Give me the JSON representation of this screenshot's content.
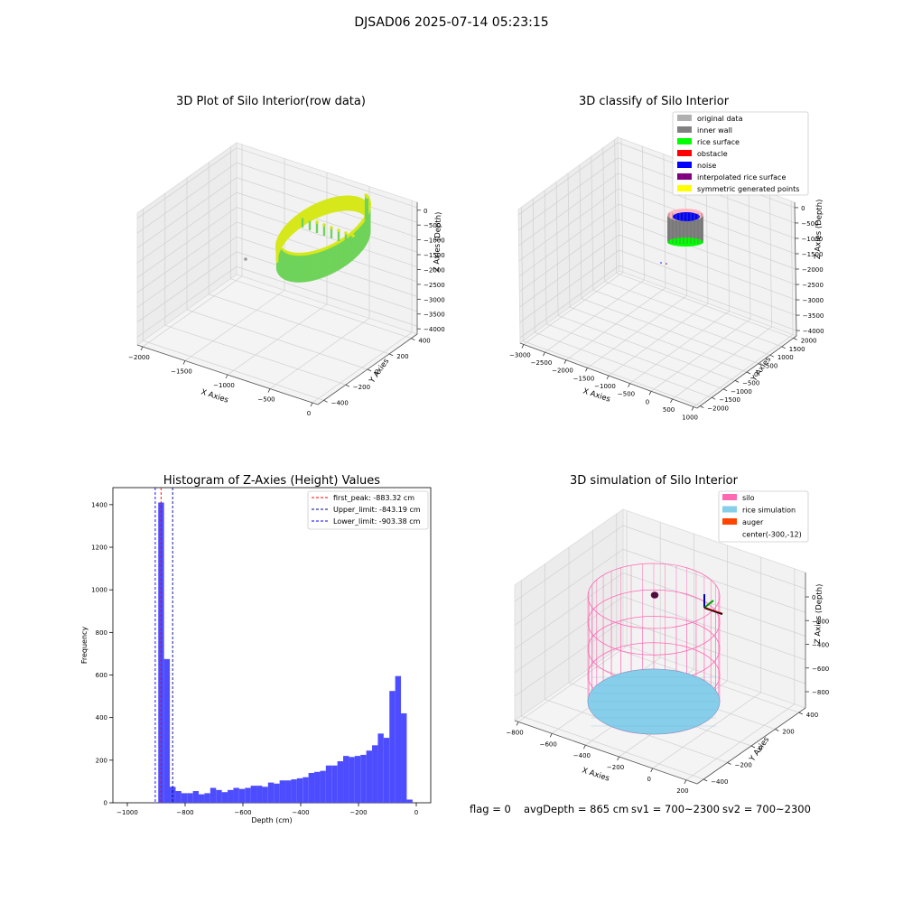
{
  "figure": {
    "suptitle": "DJSAD06 2025-07-14 05:23:15",
    "status": {
      "flag": "flag = 0",
      "avg_depth": "avgDepth = 865 cm",
      "sv1": "sv1 = 700~2300",
      "sv2": "sv2 = 700~2300"
    }
  },
  "chart_data": [
    {
      "type": "scatter",
      "projection": "3d",
      "title": "3D Plot of Silo Interior(row data)",
      "xlabel": "X Axies",
      "ylabel": "Y Axies",
      "zlabel": "Z Axies (Depth)",
      "x_ticks": [
        "−2000",
        "−1500",
        "−1000",
        "−500",
        "0"
      ],
      "y_ticks": [
        "−400",
        "−200",
        "0",
        "200",
        "400"
      ],
      "z_ticks": [
        "0",
        "−500",
        "−1000",
        "−1500",
        "−2000",
        "−2500",
        "−3000",
        "−3500",
        "−4000"
      ],
      "colormap": [
        "#6fd35a",
        "#d6e81a"
      ],
      "description_points": "ring of wall points from z≈-800 to z≈-2700 colored green to yellow"
    },
    {
      "type": "scatter",
      "projection": "3d",
      "title": "3D classify of Silo Interior",
      "xlabel": "X Axies",
      "ylabel": "Y Axies",
      "zlabel": "Z Axies (Depth)",
      "x_ticks": [
        "−3000",
        "−2500",
        "−2000",
        "−1500",
        "−1000",
        "−500",
        "0",
        "500",
        "1000"
      ],
      "y_ticks": [
        "−2000",
        "−1500",
        "−1000",
        "−500",
        "0",
        "500",
        "1000",
        "1500",
        "2000"
      ],
      "z_ticks": [
        "0",
        "−500",
        "−1000",
        "−1500",
        "−2000",
        "−2500",
        "−3000",
        "−3500",
        "−4000"
      ],
      "legend": [
        {
          "name": "original data",
          "color": "#b0b0b0"
        },
        {
          "name": "inner wall",
          "color": "#808080"
        },
        {
          "name": "rice surface",
          "color": "#00ff00"
        },
        {
          "name": "obstacle",
          "color": "#ff0000"
        },
        {
          "name": "noise",
          "color": "#0000ff"
        },
        {
          "name": "interpolated rice surface",
          "color": "#800080"
        },
        {
          "name": "symmetric generated points",
          "color": "#ffff00"
        }
      ],
      "legend_position": "top-right"
    },
    {
      "type": "bar",
      "title": "Histogram of Z-Axies (Height) Values",
      "xlabel": "Depth (cm)",
      "ylabel": "Frequency",
      "xlim": [
        -1050,
        50
      ],
      "ylim": [
        0,
        1480
      ],
      "x_ticks": [
        -1000,
        -800,
        -600,
        -400,
        -200,
        0
      ],
      "x_tick_labels": [
        "−1000",
        "−800",
        "−600",
        "−400",
        "−200",
        "0"
      ],
      "y_ticks": [
        0,
        200,
        400,
        600,
        800,
        1000,
        1200,
        1400
      ],
      "bin_width": 20,
      "bin_start": -893,
      "values": [
        1410,
        675,
        75,
        55,
        45,
        45,
        55,
        40,
        45,
        70,
        60,
        50,
        60,
        70,
        65,
        70,
        80,
        80,
        75,
        95,
        90,
        105,
        105,
        110,
        115,
        120,
        140,
        145,
        150,
        175,
        175,
        195,
        220,
        215,
        220,
        225,
        245,
        270,
        325,
        305,
        525,
        595,
        420,
        15
      ],
      "bar_color": "#4d4dff",
      "vlines": [
        {
          "name": "first_peak: -883.32 cm",
          "x": -883.32,
          "color": "#ff0000"
        },
        {
          "name": "Upper_limit: -843.19 cm",
          "x": -843.19,
          "color": "#00008b"
        },
        {
          "name": "Lower_limit: -903.38 cm",
          "x": -903.38,
          "color": "#0000ff"
        }
      ],
      "legend_position": "top-right"
    },
    {
      "type": "scatter",
      "projection": "3d",
      "title": "3D simulation of Silo Interior",
      "xlabel": "X Axies",
      "ylabel": "Y Axies",
      "zlabel": "Z Axies (Depth)",
      "x_ticks": [
        "−800",
        "−600",
        "−400",
        "−200",
        "0",
        "200"
      ],
      "y_ticks": [
        "−400",
        "−200",
        "0",
        "200",
        "400"
      ],
      "z_ticks": [
        "0",
        "−200",
        "−400",
        "−600",
        "−800"
      ],
      "legend": [
        {
          "name": "silo",
          "color": "#ff69b4"
        },
        {
          "name": "rice simulation",
          "color": "#87ceeb"
        },
        {
          "name": "auger",
          "color": "#ff4500"
        },
        {
          "name": "center(-300,-12)",
          "color": ""
        }
      ],
      "legend_position": "top-right"
    }
  ]
}
